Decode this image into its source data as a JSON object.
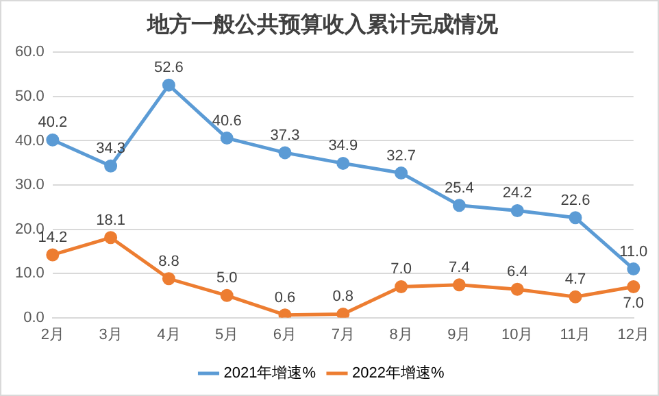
{
  "chart_data": {
    "type": "line",
    "title": "地方一般公共预算收入累计完成情况",
    "categories": [
      "2月",
      "3月",
      "4月",
      "5月",
      "6月",
      "7月",
      "8月",
      "9月",
      "10月",
      "11月",
      "12月"
    ],
    "series": [
      {
        "name": "2021年增速%",
        "color": "#5b9bd5",
        "values": [
          40.2,
          34.3,
          52.6,
          40.6,
          37.3,
          34.9,
          32.7,
          25.4,
          24.2,
          22.6,
          11.0
        ],
        "value_labels": [
          "40.2",
          "34.3",
          "52.6",
          "40.6",
          "37.3",
          "34.9",
          "32.7",
          "25.4",
          "24.2",
          "22.6",
          "11.0"
        ]
      },
      {
        "name": "2022年增速%",
        "color": "#ed7d31",
        "values": [
          14.2,
          18.1,
          8.8,
          5.0,
          0.6,
          0.8,
          7.0,
          7.4,
          6.4,
          4.7,
          7.0
        ],
        "value_labels": [
          "14.2",
          "18.1",
          "8.8",
          "5.0",
          "0.6",
          "0.8",
          "7.0",
          "7.4",
          "6.4",
          "4.7",
          "7.0"
        ]
      }
    ],
    "ylim": [
      0,
      60
    ],
    "yticks": [
      {
        "value": 0,
        "label": "0.0"
      },
      {
        "value": 10,
        "label": "10.0"
      },
      {
        "value": 20,
        "label": "20.0"
      },
      {
        "value": 30,
        "label": "30.0"
      },
      {
        "value": 40,
        "label": "40.0"
      },
      {
        "value": 50,
        "label": "50.0"
      },
      {
        "value": 60,
        "label": "60.0"
      }
    ],
    "grid": "y",
    "legend": "bottom",
    "marker": "circle",
    "line_style": "solid"
  }
}
